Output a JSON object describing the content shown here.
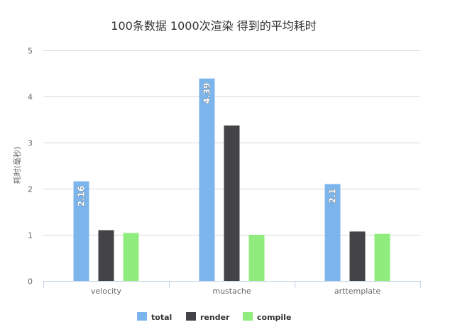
{
  "chart_data": {
    "type": "bar",
    "title": "100条数据 1000次渲染 得到的平均耗时",
    "ylabel": "耗时(毫秒)",
    "xlabel": "",
    "ylim": [
      0,
      5
    ],
    "yticks": [
      "0",
      "1",
      "2",
      "3",
      "4",
      "5"
    ],
    "categories": [
      "velocity",
      "mustache",
      "arttemplate"
    ],
    "series": [
      {
        "name": "total",
        "color": "#7cb5ec",
        "values": [
          2.16,
          4.39,
          2.1
        ],
        "data_labels": [
          "2.16",
          "4.39",
          "2.1"
        ]
      },
      {
        "name": "render",
        "color": "#434348",
        "values": [
          1.1,
          3.37,
          1.07
        ]
      },
      {
        "name": "compile",
        "color": "#90ed7d",
        "values": [
          1.04,
          1.0,
          1.02
        ]
      }
    ],
    "grid": true,
    "legend_position": "bottom-center"
  }
}
